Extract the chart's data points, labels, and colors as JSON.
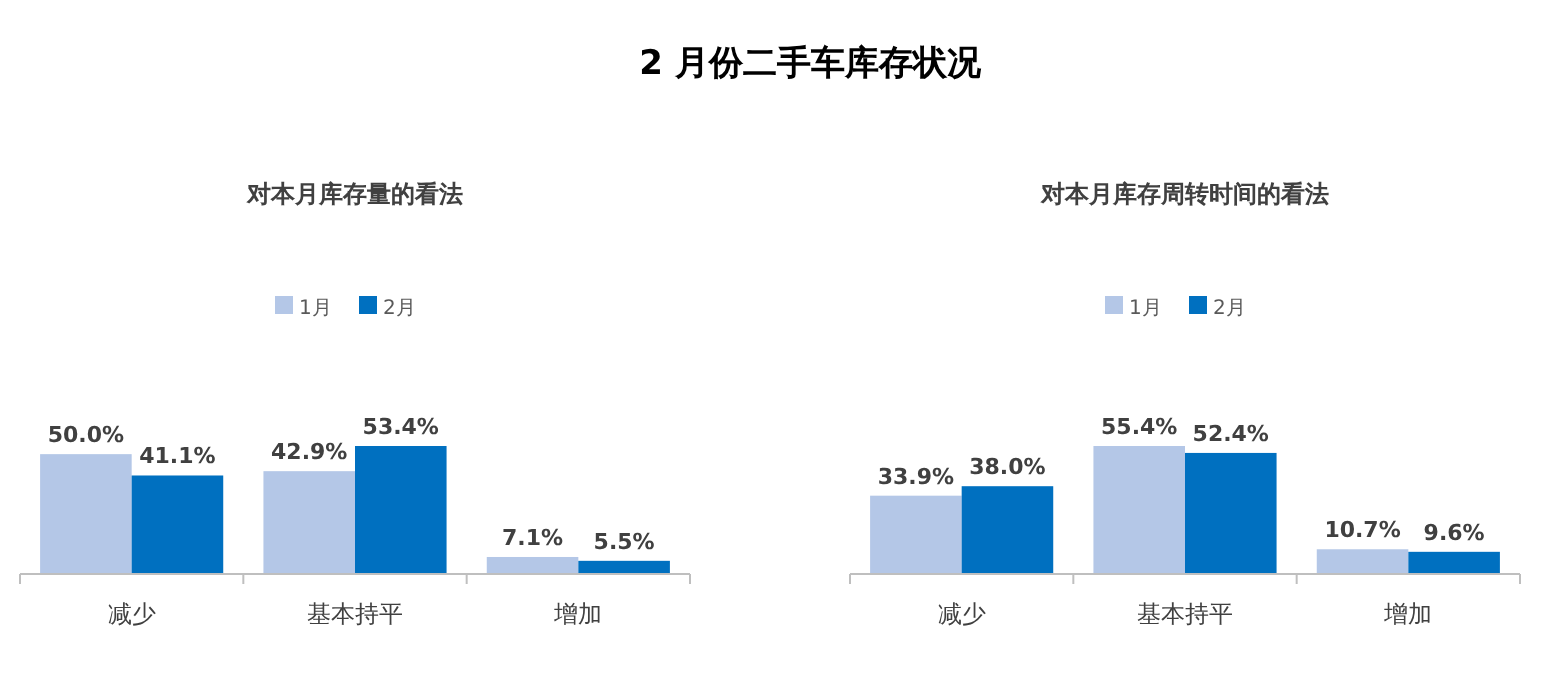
{
  "chart_data": [
    {
      "type": "bar",
      "title": "对本月库存量的看法",
      "annotations": [
        "2 月份二手车库存状况"
      ],
      "categories": [
        "减少",
        "基本持平",
        "增加"
      ],
      "legend": "top",
      "series": [
        {
          "name": "1月",
          "color": "#b4c7e7",
          "values": [
            50.0,
            42.9,
            7.1
          ],
          "value_labels": [
            "50.0%",
            "42.9%",
            "7.1%"
          ]
        },
        {
          "name": "2月",
          "color": "#0070c0",
          "values": [
            41.1,
            53.4,
            5.5
          ],
          "value_labels": [
            "41.1%",
            "53.4%",
            "5.5%"
          ]
        }
      ]
    },
    {
      "type": "bar",
      "title": "对本月库存周转时间的看法",
      "categories": [
        "减少",
        "基本持平",
        "增加"
      ],
      "legend": "top",
      "series": [
        {
          "name": "1月",
          "color": "#b4c7e7",
          "values": [
            33.9,
            55.4,
            10.7
          ],
          "value_labels": [
            "33.9%",
            "55.4%",
            "10.7%"
          ]
        },
        {
          "name": "2月",
          "color": "#0070c0",
          "values": [
            38.0,
            52.4,
            9.6
          ],
          "value_labels": [
            "38.0%",
            "52.4%",
            "9.6%"
          ]
        }
      ]
    }
  ]
}
